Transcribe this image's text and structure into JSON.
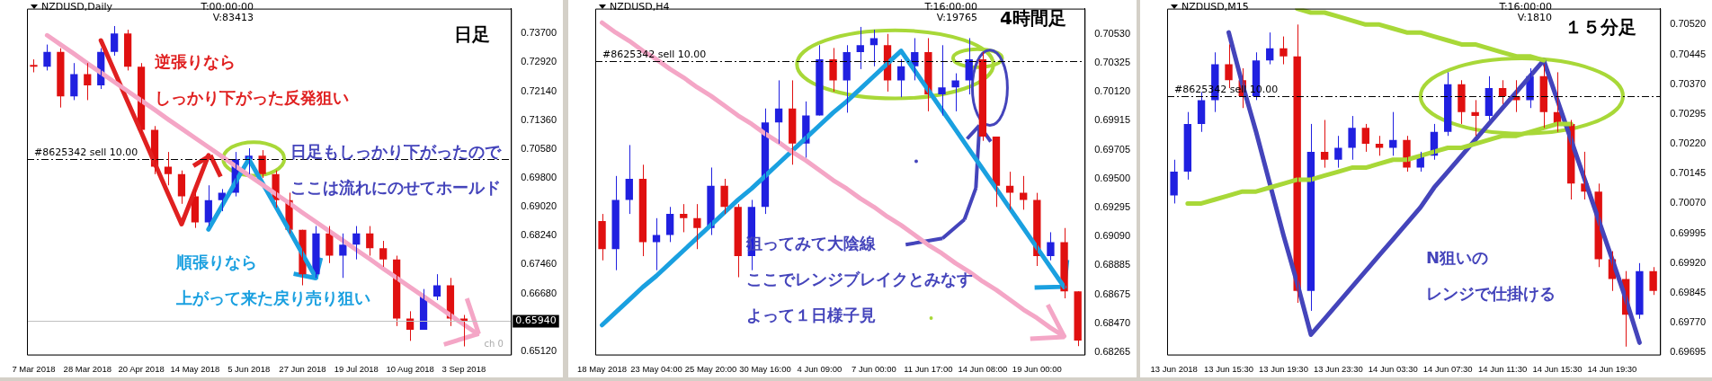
{
  "chart_data": [
    {
      "type": "candlestick",
      "title": "NZDUSD,Daily",
      "categories": [
        "7 Mar 2018",
        null,
        null,
        null,
        "28 Mar 2018",
        null,
        null,
        null,
        "20 Apr 2018",
        null,
        null,
        null,
        "14 May 2018",
        null,
        null,
        null,
        "5 Jun 2018",
        null,
        null,
        null,
        "27 Jun 2018",
        null,
        null,
        null,
        "19 Jul 2018",
        null,
        null,
        null,
        "10 Aug 2018",
        null,
        null,
        null,
        "3 Sep 2018",
        null,
        null,
        null
      ],
      "ohlc": [
        [
          0.7285,
          0.73,
          0.7265,
          0.728
        ],
        [
          0.728,
          0.734,
          0.727,
          0.732
        ],
        [
          0.732,
          0.733,
          0.717,
          0.72
        ],
        [
          0.72,
          0.729,
          0.719,
          0.726
        ],
        [
          0.726,
          0.729,
          0.719,
          0.723
        ],
        [
          0.723,
          0.733,
          0.722,
          0.732
        ],
        [
          0.732,
          0.739,
          0.731,
          0.737
        ],
        [
          0.737,
          0.738,
          0.727,
          0.728
        ],
        [
          0.728,
          0.729,
          0.71,
          0.711
        ],
        [
          0.711,
          0.712,
          0.699,
          0.701
        ],
        [
          0.701,
          0.705,
          0.696,
          0.699
        ],
        [
          0.699,
          0.7,
          0.691,
          0.693
        ],
        [
          0.693,
          0.695,
          0.6845,
          0.686
        ],
        [
          0.686,
          0.696,
          0.685,
          0.692
        ],
        [
          0.692,
          0.695,
          0.689,
          0.694
        ],
        [
          0.694,
          0.705,
          0.693,
          0.703
        ],
        [
          0.703,
          0.706,
          0.699,
          0.704
        ],
        [
          0.704,
          0.7055,
          0.698,
          0.699
        ],
        [
          0.699,
          0.7,
          0.69,
          0.692
        ],
        [
          0.692,
          0.694,
          0.683,
          0.684
        ],
        [
          0.684,
          0.684,
          0.669,
          0.672
        ],
        [
          0.672,
          0.685,
          0.671,
          0.683
        ],
        [
          0.683,
          0.685,
          0.675,
          0.677
        ],
        [
          0.677,
          0.683,
          0.671,
          0.68
        ],
        [
          0.68,
          0.685,
          0.676,
          0.683
        ],
        [
          0.683,
          0.685,
          0.677,
          0.679
        ],
        [
          0.679,
          0.681,
          0.674,
          0.676
        ],
        [
          0.676,
          0.677,
          0.658,
          0.66
        ],
        [
          0.66,
          0.662,
          0.654,
          0.657
        ],
        [
          0.657,
          0.668,
          0.657,
          0.666
        ],
        [
          0.666,
          0.672,
          0.665,
          0.669
        ],
        [
          0.669,
          0.671,
          0.658,
          0.66
        ],
        [
          0.66,
          0.661,
          0.6525,
          0.6594
        ],
        null,
        null,
        null
      ],
      "colors": [
        "#e01010",
        "#2020e0",
        "#e01010",
        "#2020e0",
        "#e01010",
        "#2020e0",
        "#2020e0",
        "#e01010",
        "#e01010",
        "#e01010",
        "#e01010",
        "#e01010",
        "#e01010",
        "#2020e0",
        "#2020e0",
        "#2020e0",
        "#2020e0",
        "#e01010",
        "#e01010",
        "#e01010",
        "#e01010",
        "#2020e0",
        "#e01010",
        "#2020e0",
        "#2020e0",
        "#e01010",
        "#e01010",
        "#e01010",
        "#e01010",
        "#2020e0",
        "#2020e0",
        "#e01010",
        "#e01010",
        null,
        null,
        null
      ],
      "series": [
        {
          "type": "line",
          "color": "#f4a6c6",
          "values": [
            null,
            0.7365,
            0.734,
            0.7315,
            0.7289,
            0.7264,
            0.7239,
            0.7214,
            0.7189,
            0.7164,
            0.7138,
            0.7113,
            0.7088,
            0.7063,
            0.7038,
            0.7012,
            0.6987,
            0.6962,
            0.6937,
            0.6912,
            0.6886,
            0.6861,
            0.6836,
            0.6811,
            0.6786,
            0.6761,
            0.6735,
            0.671,
            0.6685,
            0.666,
            0.6635,
            0.6609,
            0.6584,
            0.6559,
            null,
            null
          ]
        },
        {
          "type": "line",
          "color": "#e02020",
          "values": [
            null,
            null,
            null,
            null,
            null,
            0.7351,
            0.7268,
            0.7185,
            0.7103,
            0.702,
            0.6937,
            0.6855,
            0.6948,
            0.7041,
            null,
            null,
            null,
            null,
            null,
            null,
            null,
            null,
            null,
            null,
            null,
            null,
            null,
            null,
            null,
            null,
            null,
            null,
            null,
            null,
            null,
            null
          ]
        },
        {
          "type": "line",
          "color": "#1aa0e0",
          "values": [
            null,
            null,
            null,
            null,
            null,
            null,
            null,
            null,
            null,
            null,
            null,
            null,
            null,
            0.6841,
            0.6904,
            0.6968,
            0.7031,
            0.6967,
            0.6903,
            0.6839,
            0.6774,
            0.671,
            null,
            null,
            null,
            null,
            null,
            null,
            null,
            null,
            null,
            null,
            null,
            null,
            null,
            null
          ]
        }
      ],
      "ylim": [
        0.6503,
        0.7437
      ],
      "yticks": [
        {
          "value": 0.737,
          "label": "0.73700"
        },
        {
          "value": 0.7292,
          "label": "0.72920"
        },
        {
          "value": 0.7214,
          "label": "0.72140"
        },
        {
          "value": 0.7136,
          "label": "0.71360"
        },
        {
          "value": 0.7058,
          "label": "0.70580"
        },
        {
          "value": 0.698,
          "label": "0.69800"
        },
        {
          "value": 0.6902,
          "label": "0.69020"
        },
        {
          "value": 0.6824,
          "label": "0.68240"
        },
        {
          "value": 0.6746,
          "label": "0.67460"
        },
        {
          "value": 0.6668,
          "label": "0.66680"
        },
        {
          "value": 0.6512,
          "label": "0.65120"
        }
      ],
      "ref_lines": [
        {
          "axis": "y",
          "value": 0.7031,
          "label": "#8625342 sell 10.00",
          "line_style": "dashed",
          "color": "#000000"
        },
        {
          "axis": "y",
          "value": 0.6594,
          "label": "0.65940",
          "color": "#c0c0c0"
        }
      ],
      "annotations": [
        "T:00:00:00",
        "V:83413",
        "日足",
        "逆張りなら",
        "しっかり下がった反発狙い",
        "日足もしっかり下がったので",
        "ここは流れにのせてホールド",
        "順張りなら",
        "上がって来た戻り売り狙い",
        "ch 0"
      ]
    },
    {
      "type": "candlestick",
      "title": "NZDUSD,H4",
      "categories": [
        "18 May 2018",
        null,
        null,
        null,
        "23 May 04:00",
        null,
        null,
        null,
        "25 May 20:00",
        null,
        null,
        null,
        "30 May 16:00",
        null,
        null,
        null,
        "4 Jun 09:00",
        null,
        null,
        null,
        "7 Jun 00:00",
        null,
        null,
        null,
        "11 Jun 17:00",
        null,
        null,
        null,
        "14 Jun 08:00",
        null,
        null,
        null,
        "19 Jun 00:00",
        null,
        null,
        null
      ],
      "ohlc": [
        [
          0.692,
          0.6925,
          0.6892,
          0.69
        ],
        [
          0.69,
          0.6952,
          0.6885,
          0.6935
        ],
        [
          0.6935,
          0.6974,
          0.6925,
          0.695
        ],
        [
          0.695,
          0.696,
          0.6895,
          0.6905
        ],
        [
          0.6905,
          0.6922,
          0.6885,
          0.691
        ],
        [
          0.691,
          0.693,
          0.6905,
          0.6925
        ],
        [
          0.6925,
          0.6932,
          0.6912,
          0.6922
        ],
        [
          0.6922,
          0.6932,
          0.69,
          0.6915
        ],
        [
          0.6915,
          0.6958,
          0.691,
          0.6945
        ],
        [
          0.6945,
          0.695,
          0.6925,
          0.693
        ],
        [
          0.693,
          0.6932,
          0.688,
          0.6895
        ],
        [
          0.6895,
          0.6935,
          0.6885,
          0.693
        ],
        [
          0.693,
          0.7,
          0.6925,
          0.699
        ],
        [
          0.699,
          0.702,
          0.6975,
          0.7
        ],
        [
          0.7,
          0.702,
          0.696,
          0.6975
        ],
        [
          0.6975,
          0.7005,
          0.6965,
          0.6995
        ],
        [
          0.6995,
          0.7045,
          0.6995,
          0.7035
        ],
        [
          0.7035,
          0.7043,
          0.7012,
          0.702
        ],
        [
          0.702,
          0.7045,
          0.6997,
          0.704
        ],
        [
          0.704,
          0.7058,
          0.7028,
          0.7045
        ],
        [
          0.7045,
          0.7056,
          0.703,
          0.705
        ],
        [
          0.7045,
          0.7053,
          0.7012,
          0.702
        ],
        [
          0.702,
          0.7035,
          0.7008,
          0.703
        ],
        [
          0.703,
          0.705,
          0.702,
          0.704
        ],
        [
          0.704,
          0.705,
          0.6998,
          0.701
        ],
        [
          0.701,
          0.7045,
          0.6995,
          0.7015
        ],
        [
          0.7015,
          0.7025,
          0.6998,
          0.702
        ],
        [
          0.702,
          0.705,
          0.701,
          0.7035
        ],
        [
          0.7035,
          0.704,
          0.6977,
          0.698
        ],
        [
          0.698,
          0.698,
          0.693,
          0.6945
        ],
        [
          0.6945,
          0.6955,
          0.6928,
          0.694
        ],
        [
          0.694,
          0.6952,
          0.6928,
          0.6935
        ],
        [
          0.6935,
          0.694,
          0.6888,
          0.6895
        ],
        [
          0.6895,
          0.6912,
          0.6892,
          0.6905
        ],
        [
          0.6905,
          0.6915,
          0.6865,
          0.687
        ],
        [
          0.687,
          0.687,
          0.6831,
          0.6835
        ]
      ],
      "colors": [
        "#e01010",
        "#2020e0",
        "#2020e0",
        "#e01010",
        "#2020e0",
        "#2020e0",
        "#e01010",
        "#e01010",
        "#2020e0",
        "#e01010",
        "#e01010",
        "#2020e0",
        "#2020e0",
        "#2020e0",
        "#e01010",
        "#2020e0",
        "#2020e0",
        "#e01010",
        "#2020e0",
        "#2020e0",
        "#2020e0",
        "#e01010",
        "#2020e0",
        "#2020e0",
        "#e01010",
        "#2020e0",
        "#2020e0",
        "#2020e0",
        "#e01010",
        "#e01010",
        "#e01010",
        "#e01010",
        "#e01010",
        "#2020e0",
        "#e01010",
        "#e01010"
      ],
      "series": [
        {
          "type": "line",
          "color": "#f4a6c6",
          "values": [
            0.7061,
            0.7054,
            0.7048,
            0.7041,
            0.7035,
            0.7028,
            0.7022,
            0.7015,
            0.7009,
            0.7002,
            0.6995,
            0.6989,
            0.6982,
            0.6976,
            0.6969,
            0.6963,
            0.6956,
            0.6949,
            0.6943,
            0.6936,
            0.693,
            0.6923,
            0.6917,
            0.691,
            0.6903,
            0.6897,
            0.689,
            0.6884,
            0.6877,
            0.6871,
            0.6864,
            0.6857,
            0.6851,
            0.6844,
            0.6838,
            null
          ]
        },
        {
          "type": "line",
          "color": "#1aa0e0",
          "values": [
            0.6846,
            0.6855,
            0.6864,
            0.6873,
            0.6881,
            0.689,
            0.6899,
            0.6908,
            0.6917,
            0.6926,
            0.6935,
            0.6943,
            0.6952,
            0.6961,
            0.697,
            0.6979,
            0.6988,
            0.6997,
            0.7005,
            0.7014,
            0.7023,
            0.7032,
            0.7041,
            0.7027,
            0.7013,
            0.6999,
            0.6985,
            0.6971,
            0.6957,
            0.6943,
            0.6929,
            0.6915,
            0.6901,
            0.6887,
            0.6873,
            null
          ]
        }
      ],
      "ylim": [
        0.6825,
        0.7071
      ],
      "yticks": [
        {
          "value": 0.7053,
          "label": "0.70530"
        },
        {
          "value": 0.70325,
          "label": "0.70325"
        },
        {
          "value": 0.7012,
          "label": "0.70120"
        },
        {
          "value": 0.69915,
          "label": "0.69915"
        },
        {
          "value": 0.69705,
          "label": "0.69705"
        },
        {
          "value": 0.695,
          "label": "0.69500"
        },
        {
          "value": 0.69295,
          "label": "0.69295"
        },
        {
          "value": 0.6909,
          "label": "0.69090"
        },
        {
          "value": 0.68885,
          "label": "0.68885"
        },
        {
          "value": 0.68675,
          "label": "0.68675"
        },
        {
          "value": 0.6847,
          "label": "0.68470"
        },
        {
          "value": 0.68265,
          "label": "0.68265"
        }
      ],
      "ref_lines": [
        {
          "axis": "y",
          "value": 0.7034,
          "label": "#8625342 sell 10.00",
          "line_style": "dashed",
          "color": "#000000"
        }
      ],
      "annotations": [
        "T:16:00:00",
        "V:19765",
        "4時間足",
        "狙ってみて大陰線",
        "ここでレンジブレイクとみなす",
        "よって１日様子見"
      ]
    },
    {
      "type": "candlestick",
      "title": "NZDUSD,M15",
      "categories": [
        "13 Jun 2018",
        null,
        null,
        null,
        "13 Jun 15:30",
        null,
        null,
        null,
        "13 Jun 19:30",
        null,
        null,
        null,
        "13 Jun 23:30",
        null,
        null,
        null,
        "14 Jun 03:30",
        null,
        null,
        null,
        "14 Jun 07:30",
        null,
        null,
        null,
        "14 Jun 11:30",
        null,
        null,
        null,
        "14 Jun 15:30",
        null,
        null,
        null,
        "14 Jun 19:30",
        null,
        null,
        null
      ],
      "ohlc": [
        [
          0.7009,
          0.7018,
          0.7007,
          0.7015
        ],
        [
          0.7015,
          0.703,
          0.7013,
          0.7027
        ],
        [
          0.7027,
          0.7035,
          0.7025,
          0.7033
        ],
        [
          0.7033,
          0.7045,
          0.703,
          0.7042
        ],
        [
          0.7042,
          0.7047,
          0.7036,
          0.7038
        ],
        [
          0.7038,
          0.7041,
          0.7031,
          0.7034
        ],
        [
          0.7034,
          0.7045,
          0.7033,
          0.7043
        ],
        [
          0.7043,
          0.705,
          0.7042,
          0.7046
        ],
        [
          0.7046,
          0.7049,
          0.7042,
          0.7044
        ],
        [
          0.7044,
          0.7052,
          0.6982,
          0.6985
        ],
        [
          0.6985,
          0.7027,
          0.698,
          0.702
        ],
        [
          0.702,
          0.7028,
          0.7016,
          0.7018
        ],
        [
          0.7018,
          0.7024,
          0.7016,
          0.7021
        ],
        [
          0.7021,
          0.7029,
          0.7018,
          0.7026
        ],
        [
          0.7026,
          0.7027,
          0.702,
          0.7022
        ],
        [
          0.7022,
          0.7024,
          0.7019,
          0.7021
        ],
        [
          0.7021,
          0.703,
          0.7019,
          0.7023
        ],
        [
          0.7023,
          0.7024,
          0.7015,
          0.7016
        ],
        [
          0.7016,
          0.702,
          0.7015,
          0.7019
        ],
        [
          0.7019,
          0.7027,
          0.7018,
          0.7025
        ],
        [
          0.7025,
          0.704,
          0.7024,
          0.7037
        ],
        [
          0.7037,
          0.7038,
          0.7027,
          0.703
        ],
        [
          0.703,
          0.7033,
          0.7024,
          0.7029
        ],
        [
          0.7029,
          0.7039,
          0.7028,
          0.7036
        ],
        [
          0.7036,
          0.7038,
          0.7032,
          0.7034
        ],
        [
          0.7034,
          0.7038,
          0.703,
          0.7033
        ],
        [
          0.7033,
          0.7041,
          0.7031,
          0.7039
        ],
        [
          0.7039,
          0.7042,
          0.7026,
          0.703
        ],
        [
          0.703,
          0.704,
          0.7025,
          0.7027
        ],
        [
          0.7027,
          0.7028,
          0.7008,
          0.7012
        ],
        [
          0.7012,
          0.702,
          0.7008,
          0.701
        ],
        [
          0.701,
          0.7012,
          0.6991,
          0.6993
        ],
        [
          0.6993,
          0.6995,
          0.6985,
          0.6988
        ],
        [
          0.6988,
          0.699,
          0.6971,
          0.6979
        ],
        [
          0.6979,
          0.6992,
          0.6978,
          0.699
        ],
        [
          0.699,
          0.6991,
          0.6984,
          0.6985
        ]
      ],
      "colors": [
        "#2020e0",
        "#2020e0",
        "#2020e0",
        "#2020e0",
        "#e01010",
        "#e01010",
        "#2020e0",
        "#2020e0",
        "#e01010",
        "#e01010",
        "#2020e0",
        "#e01010",
        "#2020e0",
        "#2020e0",
        "#e01010",
        "#e01010",
        "#2020e0",
        "#e01010",
        "#2020e0",
        "#2020e0",
        "#2020e0",
        "#e01010",
        "#e01010",
        "#2020e0",
        "#e01010",
        "#e01010",
        "#2020e0",
        "#e01010",
        "#e01010",
        "#e01010",
        "#e01010",
        "#e01010",
        "#e01010",
        "#e01010",
        "#2020e0",
        "#e01010"
      ],
      "series": [
        {
          "type": "line",
          "color": "#a8d838",
          "values": [
            null,
            null,
            null,
            null,
            null,
            null,
            null,
            null,
            null,
            0.7056,
            0.7055,
            0.7055,
            0.7054,
            0.7053,
            0.7052,
            0.7052,
            0.7051,
            0.705,
            0.705,
            0.7049,
            0.7048,
            0.7047,
            0.7047,
            0.7046,
            0.7045,
            0.7044,
            0.7044,
            0.7043,
            null,
            null,
            null,
            null,
            null,
            null,
            null,
            null
          ]
        },
        {
          "type": "line",
          "color": "#a8d838",
          "values": [
            null,
            0.7007,
            0.7007,
            0.7008,
            0.7009,
            0.701,
            0.701,
            0.7011,
            0.7012,
            0.7013,
            0.7013,
            0.7014,
            0.7015,
            0.7016,
            0.7016,
            0.7017,
            0.7018,
            0.7018,
            0.7019,
            0.702,
            0.7021,
            0.7021,
            0.7022,
            0.7023,
            0.7024,
            0.7024,
            0.7025,
            0.7026,
            0.7027,
            0.7027,
            null,
            null,
            null,
            null,
            null,
            null
          ]
        },
        {
          "type": "line",
          "color": "#4444bb",
          "values": [
            null,
            null,
            null,
            null,
            0.705,
            0.7037,
            0.7025,
            0.7012,
            0.6999,
            0.6987,
            0.6974,
            0.6978,
            0.6982,
            0.6986,
            0.699,
            0.6994,
            0.6998,
            0.7002,
            0.7006,
            0.7011,
            0.7015,
            0.7019,
            0.7023,
            0.7027,
            0.7031,
            0.7035,
            0.7039,
            0.7043,
            0.7033,
            0.7023,
            0.7013,
            0.7003,
            0.6993,
            0.6983,
            0.6972,
            null
          ]
        }
      ],
      "ylim": [
        0.6969,
        0.7056
      ],
      "yticks": [
        {
          "value": 0.7052,
          "label": "0.70520"
        },
        {
          "value": 0.70445,
          "label": "0.70445"
        },
        {
          "value": 0.7037,
          "label": "0.70370"
        },
        {
          "value": 0.70295,
          "label": "0.70295"
        },
        {
          "value": 0.7022,
          "label": "0.70220"
        },
        {
          "value": 0.70145,
          "label": "0.70145"
        },
        {
          "value": 0.7007,
          "label": "0.70070"
        },
        {
          "value": 0.69995,
          "label": "0.69995"
        },
        {
          "value": 0.6992,
          "label": "0.69920"
        },
        {
          "value": 0.69845,
          "label": "0.69845"
        },
        {
          "value": 0.6977,
          "label": "0.69770"
        },
        {
          "value": 0.69695,
          "label": "0.69695"
        }
      ],
      "ref_lines": [
        {
          "axis": "y",
          "value": 0.7034,
          "label": "#8625342 sell 10.00",
          "line_style": "dashed",
          "color": "#000000"
        }
      ],
      "annotations": [
        "T:16:00:00",
        "V:1810",
        "１５分足",
        "N狙いの",
        "レンジで仕掛ける"
      ]
    }
  ]
}
